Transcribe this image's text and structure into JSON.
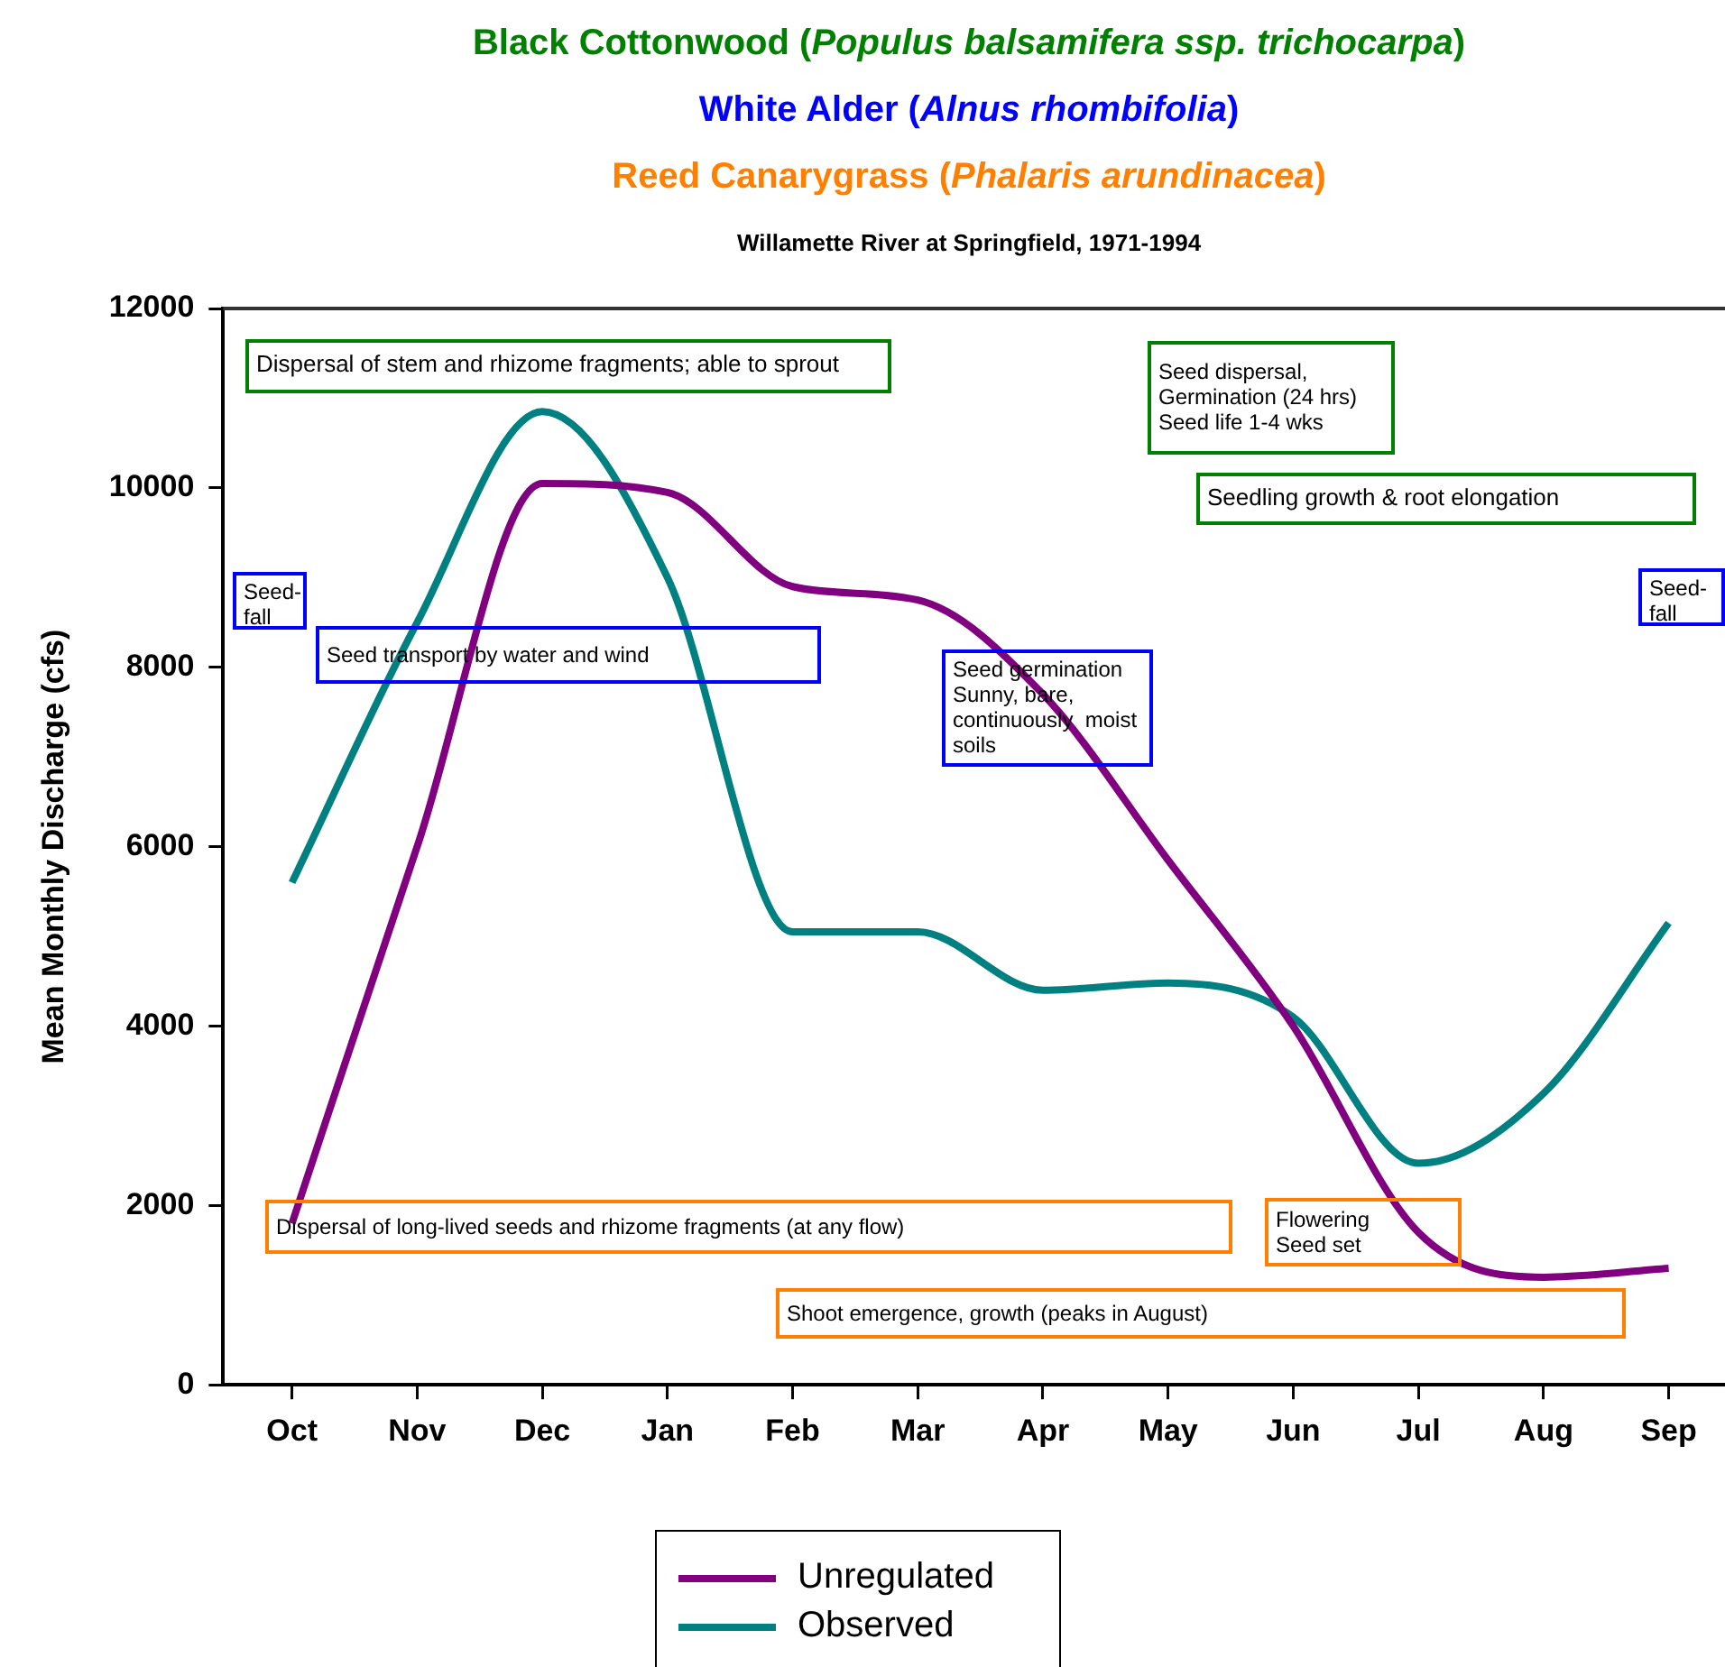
{
  "chart_data": {
    "type": "line",
    "title": "Black Cottonwood (Populus balsamifera ssp. trichocarpa)\nWhite Alder (Alnus rhombifolia)\nReed Canarygrass (Phalaris arundinacea)",
    "subtitle": "Willamette River at Springfield, 1971-1994",
    "ylabel": "Mean Monthly Discharge (cfs)",
    "categories": [
      "Oct",
      "Nov",
      "Dec",
      "Jan",
      "Feb",
      "Mar",
      "Apr",
      "May",
      "Jun",
      "Jul",
      "Aug",
      "Sep"
    ],
    "series": [
      {
        "name": "Unregulated",
        "color": "#800080",
        "values": [
          1800,
          6000,
          10050,
          9950,
          8900,
          8750,
          7700,
          5850,
          4000,
          1700,
          1200,
          1300
        ]
      },
      {
        "name": "Observed",
        "color": "#008080",
        "values": [
          5600,
          8500,
          10850,
          9000,
          5050,
          5050,
          4400,
          4480,
          4100,
          2470,
          3250,
          5150
        ]
      }
    ],
    "ylim": [
      0,
      12000
    ],
    "yticks": [
      0,
      2000,
      4000,
      6000,
      8000,
      10000,
      12000
    ],
    "grid": false,
    "legend": "bottom",
    "marker": "none",
    "line_style": "solid",
    "annotations": [
      "Dispersal of stem and rhizome fragments; able to sprout",
      "Seed dispersal,\nGermination (24 hrs)\nSeed life 1-4 wks",
      "Seedling growth & root elongation",
      "Seed-\nfall",
      "Seed transport by water and wind",
      "Seed germination\nSunny, bare,\ncontinuously  moist\nsoils",
      "Seed-\nfall",
      "Dispersal of long-lived seeds and rhizome fragments (at any flow)",
      "Flowering\nSeed set",
      "Shoot emergence, growth (peaks in August)"
    ]
  }
}
